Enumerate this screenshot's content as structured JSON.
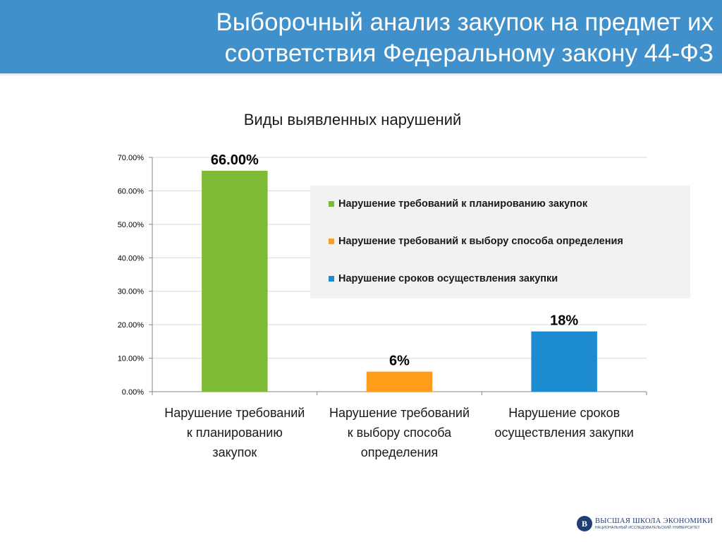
{
  "slide": {
    "title": "Выборочный анализ закупок на предмет их соответствия Федеральному закону 44-ФЗ"
  },
  "chart_data": {
    "type": "bar",
    "title": "Виды выявленных  нарушений",
    "categories": [
      [
        "Нарушение требований",
        "к планированию",
        "закупок"
      ],
      [
        "Нарушение требований",
        "к выбору способа",
        "определения"
      ],
      [
        "Нарушение сроков",
        "осуществления закупки"
      ]
    ],
    "values": [
      66,
      6,
      18
    ],
    "data_labels": [
      "66.00%",
      "6%",
      "18%"
    ],
    "colors": [
      "#7dbb35",
      "#ff9c1a",
      "#1c8bcf"
    ],
    "ylim": [
      0,
      70
    ],
    "yticks": [
      "0.00%",
      "10.00%",
      "20.00%",
      "30.00%",
      "40.00%",
      "50.00%",
      "60.00%",
      "70.00%"
    ],
    "grid": true,
    "xlabel": "",
    "ylabel": "",
    "legend_position": "right",
    "legend": [
      "Нарушение требований к планированию закупок",
      "Нарушение требований к выбору способа определения",
      "Нарушение сроков осуществления закупки"
    ]
  },
  "logo": {
    "mark": "В",
    "line1": "ВЫСШАЯ ШКОЛА ЭКОНОМИКИ",
    "line2": "НАЦИОНАЛЬНЫЙ ИССЛЕДОВАТЕЛЬСКИЙ УНИВЕРСИТЕТ"
  }
}
